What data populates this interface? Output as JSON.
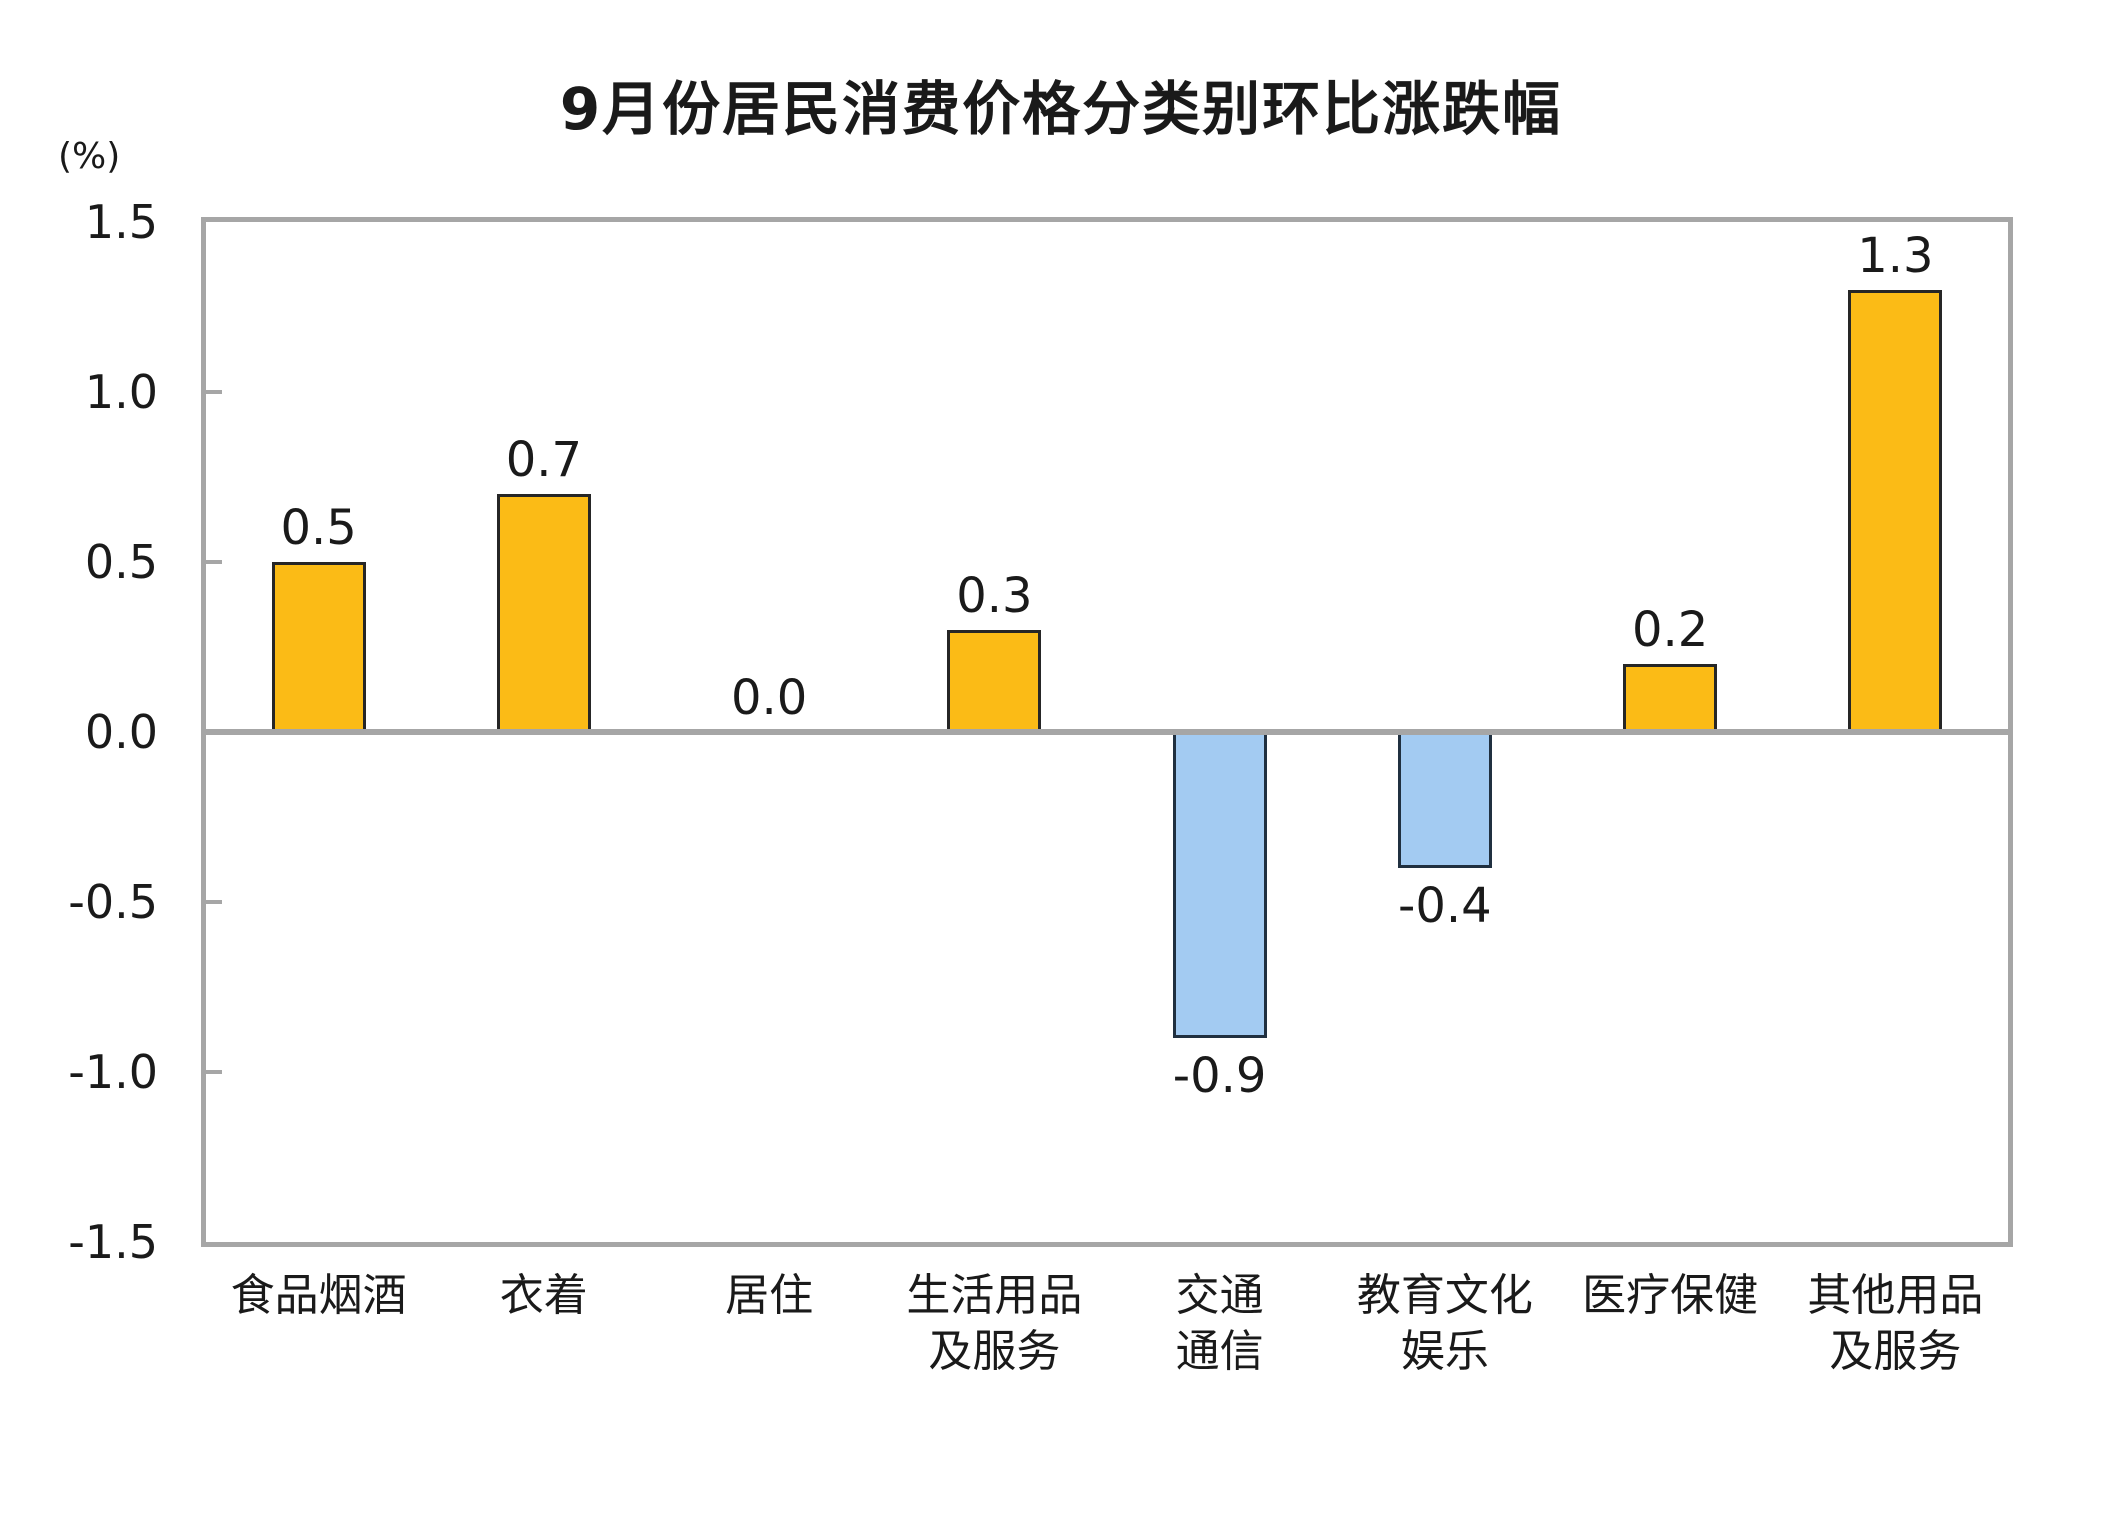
{
  "chart_data": {
    "type": "bar",
    "title": "9月份居民消费价格分类别环比涨跌幅",
    "unit": "(%)",
    "ylim": [
      -1.5,
      1.5
    ],
    "ytick_interval": 0.5,
    "yticks": [
      "1.5",
      "1.0",
      "0.5",
      "0.0",
      "-0.5",
      "-1.0",
      "-1.5"
    ],
    "grid": false,
    "legend": "none",
    "categories": [
      "食品烟酒",
      "衣着",
      "居住",
      "生活用品及服务",
      "交通通信",
      "教育文化娱乐",
      "医疗保健",
      "其他用品及服务"
    ],
    "category_lines": [
      [
        "食品烟酒"
      ],
      [
        "衣着"
      ],
      [
        "居住"
      ],
      [
        "生活用品",
        "及服务"
      ],
      [
        "交通",
        "通信"
      ],
      [
        "教育文化",
        "娱乐"
      ],
      [
        "医疗保健"
      ],
      [
        "其他用品",
        "及服务"
      ]
    ],
    "values": [
      0.5,
      0.7,
      0.0,
      0.3,
      -0.9,
      -0.4,
      0.2,
      1.3
    ],
    "value_labels": [
      "0.5",
      "0.7",
      "0.0",
      "0.3",
      "-0.9",
      "-0.4",
      "0.2",
      "1.3"
    ],
    "colors": {
      "positive_bar_fill": "#FBBB16",
      "positive_bar_border": "#262626",
      "negative_bar_fill": "#A3CBF2",
      "negative_bar_border": "#203040",
      "axis_frame": "#A6A6A6",
      "zero_line": "#A6A6A6",
      "text": "#1A1A1A"
    }
  }
}
